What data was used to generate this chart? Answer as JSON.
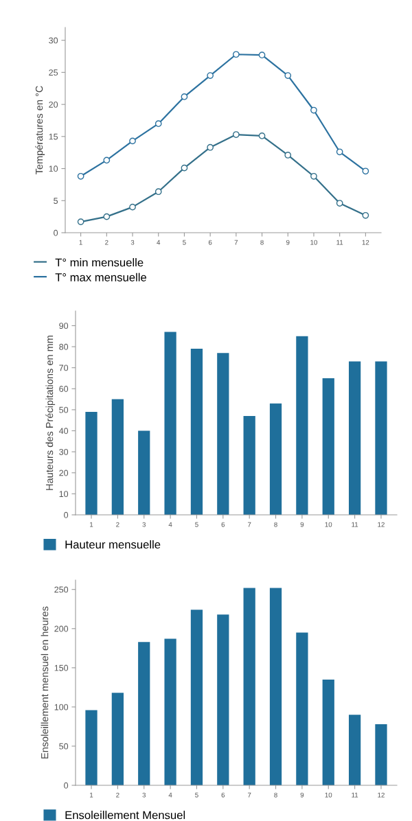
{
  "chart_data": [
    {
      "type": "line",
      "ylabel": "Températures en °C",
      "categories": [
        "1",
        "2",
        "3",
        "4",
        "5",
        "6",
        "7",
        "8",
        "9",
        "10",
        "11",
        "12"
      ],
      "ylim": [
        0,
        32
      ],
      "yticks": [
        0,
        5,
        10,
        15,
        20,
        25,
        30
      ],
      "grid": false,
      "legend": "bottom left",
      "marker": "circle",
      "line_style": "solid",
      "series": [
        {
          "name": "T° min mensuelle",
          "color": "#34708a",
          "values": [
            1.7,
            2.5,
            4.0,
            6.4,
            10.1,
            13.3,
            15.3,
            15.1,
            12.1,
            8.8,
            4.6,
            2.7
          ]
        },
        {
          "name": "T° max mensuelle",
          "color": "#2c72a0",
          "values": [
            8.8,
            11.3,
            14.3,
            17.0,
            21.2,
            24.5,
            27.8,
            27.7,
            24.5,
            19.1,
            12.6,
            9.6
          ]
        }
      ]
    },
    {
      "type": "bar",
      "ylabel": "Hauteurs des Précipitations en mm",
      "categories": [
        "1",
        "2",
        "3",
        "4",
        "5",
        "6",
        "7",
        "8",
        "9",
        "10",
        "11",
        "12"
      ],
      "ylim": [
        0,
        97
      ],
      "yticks": [
        0,
        10,
        20,
        30,
        40,
        50,
        60,
        70,
        80,
        90
      ],
      "grid": false,
      "legend": "bottom left",
      "series": [
        {
          "name": "Hauteur mensuelle",
          "color": "#1f6f9b",
          "values": [
            49,
            55,
            40,
            87,
            79,
            77,
            47,
            53,
            85,
            65,
            73,
            73
          ]
        }
      ]
    },
    {
      "type": "bar",
      "ylabel": "Ensoleillement mensuel en heures",
      "categories": [
        "1",
        "2",
        "3",
        "4",
        "5",
        "6",
        "7",
        "8",
        "9",
        "10",
        "11",
        "12"
      ],
      "ylim": [
        0,
        262
      ],
      "yticks": [
        0,
        50,
        100,
        150,
        200,
        250
      ],
      "grid": false,
      "legend": "bottom left",
      "series": [
        {
          "name": "Ensoleillement Mensuel",
          "color": "#1f6f9b",
          "values": [
            96,
            118,
            183,
            187,
            224,
            218,
            252,
            252,
            195,
            135,
            90,
            78
          ]
        }
      ]
    }
  ]
}
